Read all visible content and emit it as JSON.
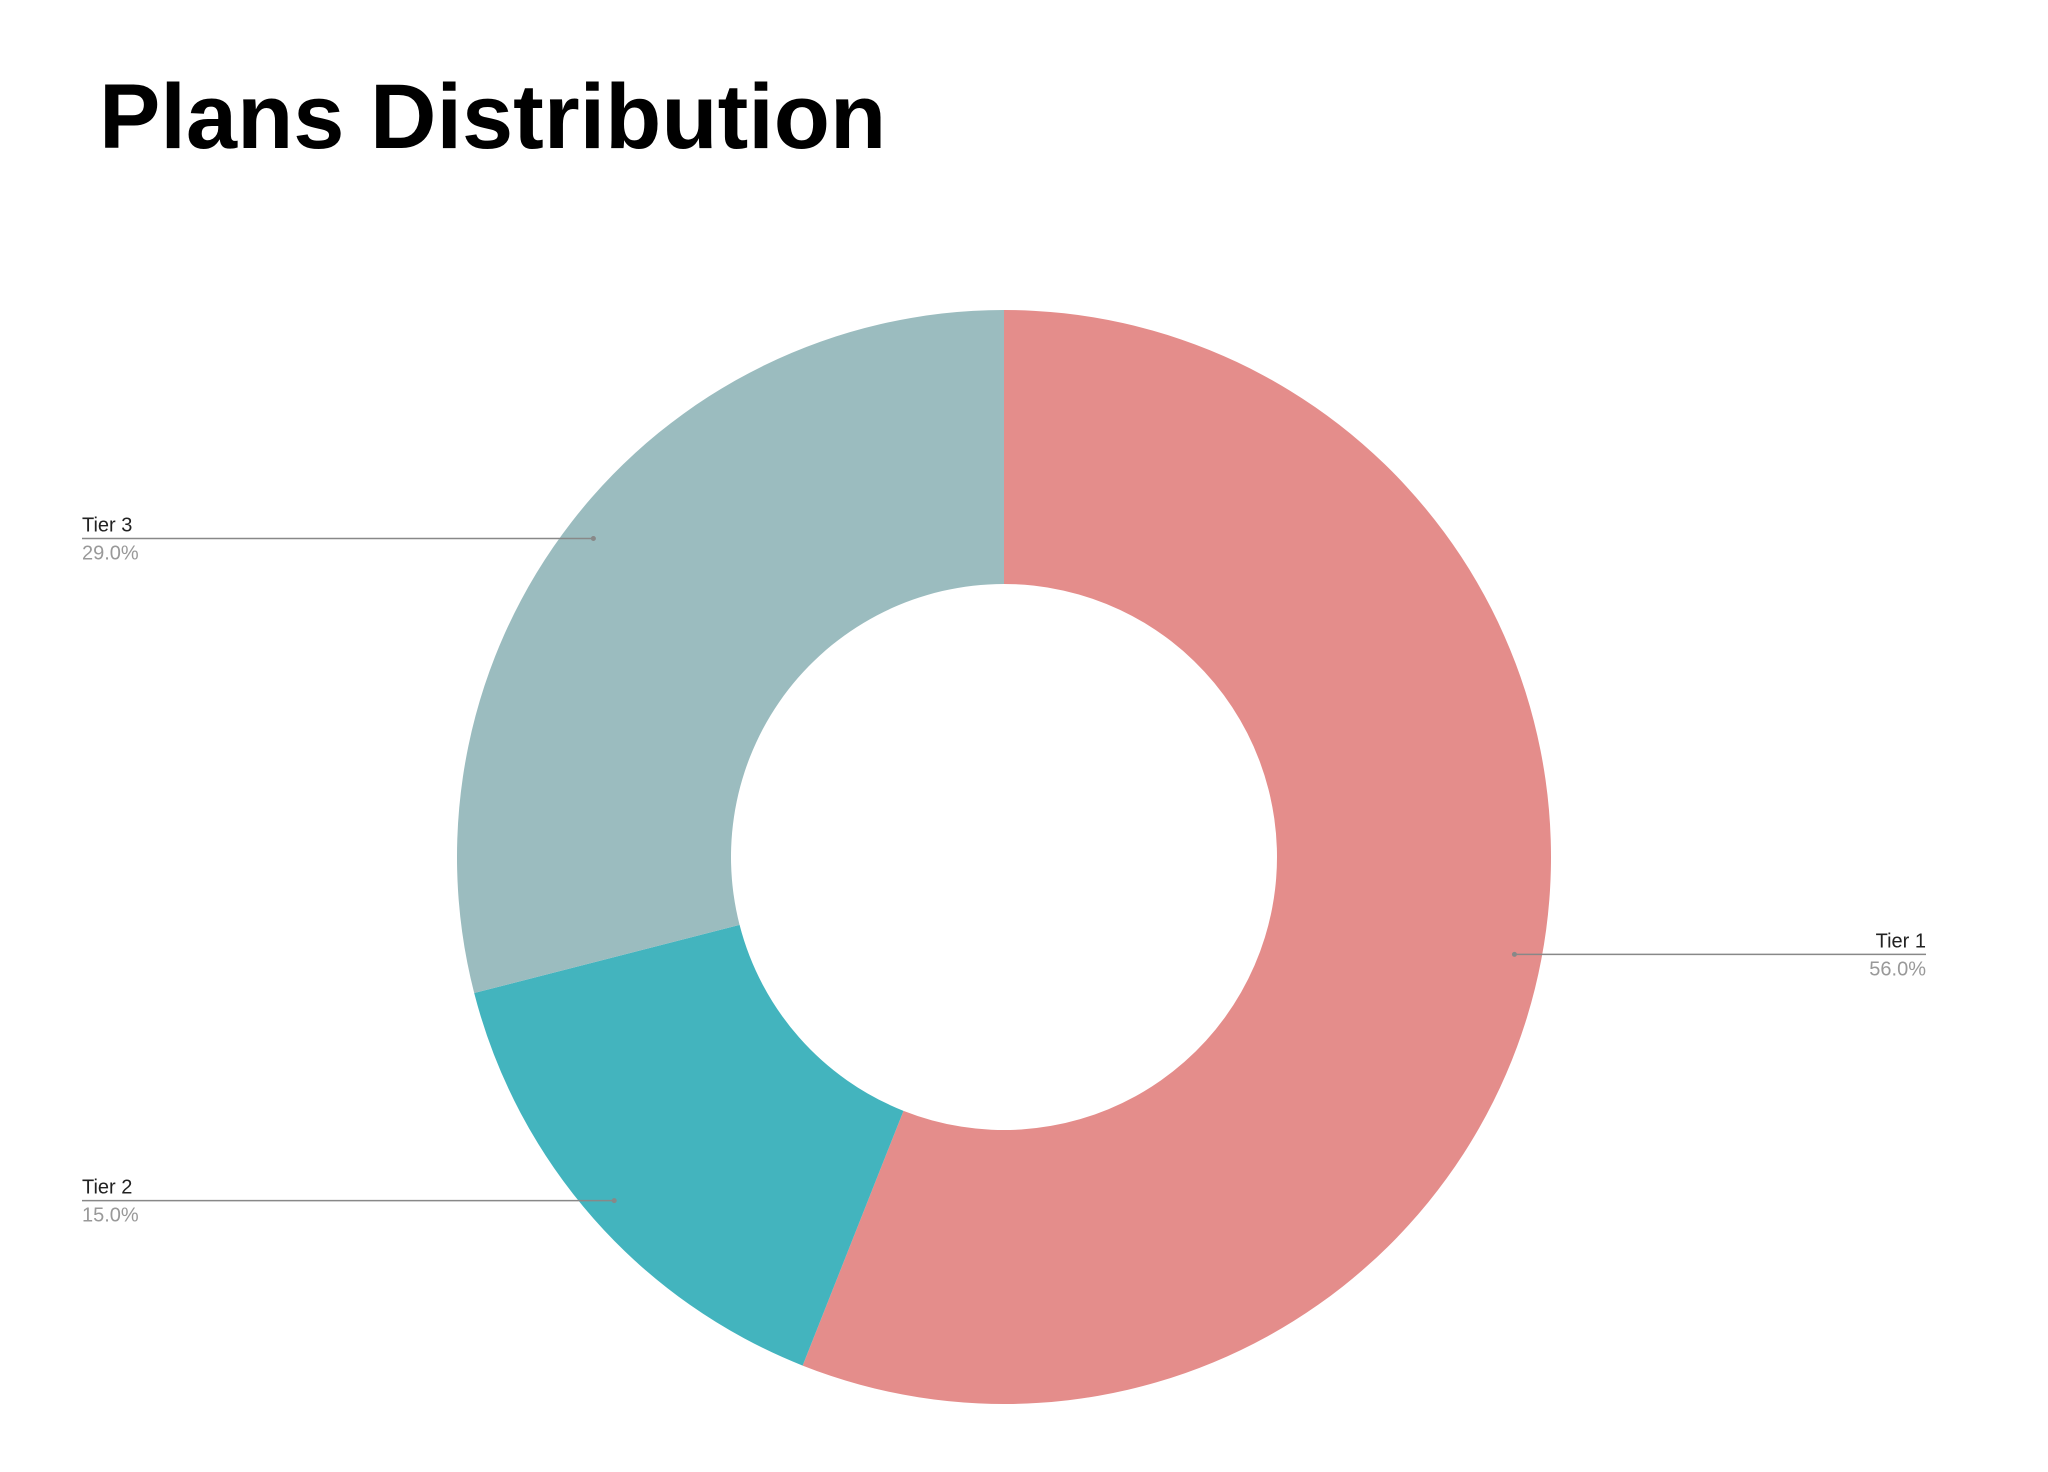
{
  "chart_data": {
    "type": "donut",
    "title": "Plans Distribution",
    "categories": [
      "Tier 1",
      "Tier 2",
      "Tier 3"
    ],
    "values": [
      56,
      15,
      29
    ],
    "value_labels": [
      "56.0%",
      "15.0%",
      "29.0%"
    ],
    "colors": [
      "#e48d8b",
      "#43b4be",
      "#9bbcbf"
    ]
  }
}
